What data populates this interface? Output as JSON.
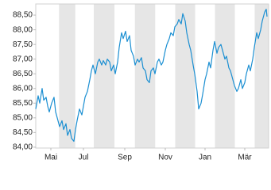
{
  "chart_data": {
    "type": "line",
    "color": "#1b8fd2",
    "band_color": "#e6e6e6",
    "x": [
      0,
      3,
      5,
      8,
      10,
      13,
      15,
      17,
      20,
      23,
      25,
      27,
      30,
      33,
      35,
      38,
      40,
      43,
      45,
      48,
      50,
      52,
      55,
      58,
      60,
      62,
      65,
      68,
      70,
      72,
      75,
      78,
      80,
      83,
      85,
      88,
      90,
      93,
      95,
      98,
      100,
      103,
      105,
      108,
      110,
      113,
      115,
      118,
      120,
      123,
      125,
      128,
      130,
      133,
      135,
      138,
      140,
      143,
      145,
      148,
      150,
      153,
      155,
      158,
      160,
      163,
      165,
      168,
      170,
      173,
      175,
      178,
      180,
      183,
      185,
      188,
      190,
      193,
      195,
      198,
      200,
      203,
      205,
      208,
      210,
      213,
      215,
      218,
      220,
      223,
      225,
      228,
      230,
      233,
      235,
      238,
      240,
      243,
      245,
      248,
      250,
      253,
      255,
      258,
      260,
      263,
      265,
      268,
      270,
      273,
      275,
      278,
      280,
      283,
      285,
      288,
      290,
      291
    ],
    "values": [
      85.3,
      85.75,
      85.5,
      86.0,
      85.6,
      85.7,
      85.4,
      85.2,
      85.5,
      85.7,
      85.2,
      85.0,
      84.7,
      84.9,
      84.6,
      84.8,
      84.4,
      84.6,
      84.3,
      84.2,
      84.6,
      84.9,
      85.3,
      85.1,
      85.4,
      85.7,
      85.9,
      86.3,
      86.6,
      86.8,
      86.5,
      86.9,
      87.0,
      86.8,
      86.95,
      86.8,
      87.0,
      86.9,
      86.6,
      86.8,
      86.5,
      86.9,
      87.4,
      87.9,
      87.7,
      87.95,
      87.6,
      87.8,
      87.3,
      87.1,
      86.8,
      87.0,
      86.9,
      87.05,
      86.7,
      86.6,
      86.3,
      86.2,
      86.6,
      86.7,
      86.5,
      86.9,
      87.0,
      86.8,
      86.9,
      87.3,
      87.5,
      87.7,
      87.9,
      87.8,
      88.1,
      88.2,
      88.35,
      88.2,
      88.55,
      88.3,
      87.9,
      87.5,
      87.3,
      86.8,
      86.5,
      85.9,
      85.3,
      85.5,
      85.8,
      86.3,
      86.5,
      86.9,
      86.7,
      87.3,
      87.6,
      87.2,
      87.4,
      87.5,
      87.3,
      87.0,
      87.1,
      86.7,
      86.6,
      86.3,
      86.1,
      85.9,
      86.0,
      86.3,
      86.0,
      86.2,
      86.5,
      86.8,
      86.6,
      87.0,
      87.4,
      87.9,
      87.7,
      88.0,
      88.3,
      88.6,
      88.7,
      88.45
    ],
    "xlim": [
      0,
      293
    ],
    "xticks": [
      {
        "value": 19,
        "label": "Mai"
      },
      {
        "value": 60,
        "label": "Jul"
      },
      {
        "value": 112,
        "label": "Sep"
      },
      {
        "value": 163,
        "label": "Nov"
      },
      {
        "value": 213,
        "label": "Jan"
      },
      {
        "value": 263,
        "label": "Mär"
      }
    ],
    "ylim": [
      83.97,
      88.88
    ],
    "yticks": [
      {
        "value": 84,
        "label": "84,00"
      },
      {
        "value": 84.5,
        "label": "84,50"
      },
      {
        "value": 85,
        "label": "85,00"
      },
      {
        "value": 85.5,
        "label": "85,50"
      },
      {
        "value": 86,
        "label": "86,00"
      },
      {
        "value": 86.5,
        "label": "86,50"
      },
      {
        "value": 87,
        "label": "87,00"
      },
      {
        "value": 87.5,
        "label": "87,50"
      },
      {
        "value": 88,
        "label": "88,00"
      },
      {
        "value": 88.5,
        "label": "88,50"
      }
    ]
  }
}
